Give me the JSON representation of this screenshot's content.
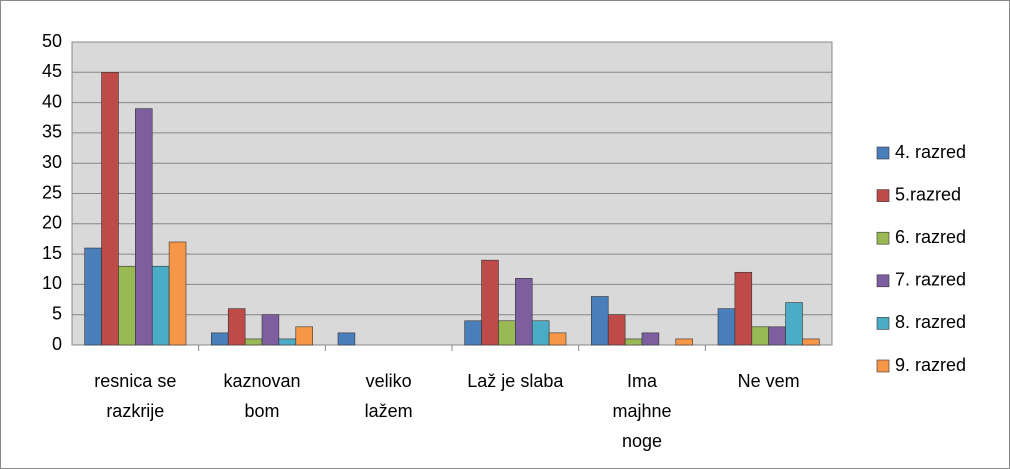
{
  "chart_data": {
    "type": "bar",
    "categories": [
      [
        "resnica se",
        "razkrije"
      ],
      [
        "kaznovan",
        "bom"
      ],
      [
        "veliko",
        "lažem"
      ],
      [
        "Laž je slaba"
      ],
      [
        "Ima",
        "majhne",
        "noge"
      ],
      [
        "Ne vem"
      ]
    ],
    "series": [
      {
        "name": "4. razred",
        "color": "#4a7ebb",
        "values": [
          16,
          2,
          2,
          4,
          8,
          6
        ]
      },
      {
        "name": "5.razred",
        "color": "#be4b48",
        "values": [
          45,
          6,
          0,
          14,
          5,
          12
        ]
      },
      {
        "name": "6. razred",
        "color": "#98b954",
        "values": [
          13,
          1,
          0,
          4,
          1,
          3
        ]
      },
      {
        "name": "7. razred",
        "color": "#7d5fa0",
        "values": [
          39,
          5,
          0,
          11,
          2,
          3
        ]
      },
      {
        "name": "8. razred",
        "color": "#4bacc6",
        "values": [
          13,
          1,
          0,
          4,
          0,
          7
        ]
      },
      {
        "name": "9. razred",
        "color": "#f79646",
        "values": [
          17,
          3,
          0,
          2,
          1,
          1
        ]
      }
    ],
    "ylim": [
      0,
      50
    ],
    "yticks": [
      0,
      5,
      10,
      15,
      20,
      25,
      30,
      35,
      40,
      45,
      50
    ],
    "grid": true,
    "legend": "right"
  }
}
